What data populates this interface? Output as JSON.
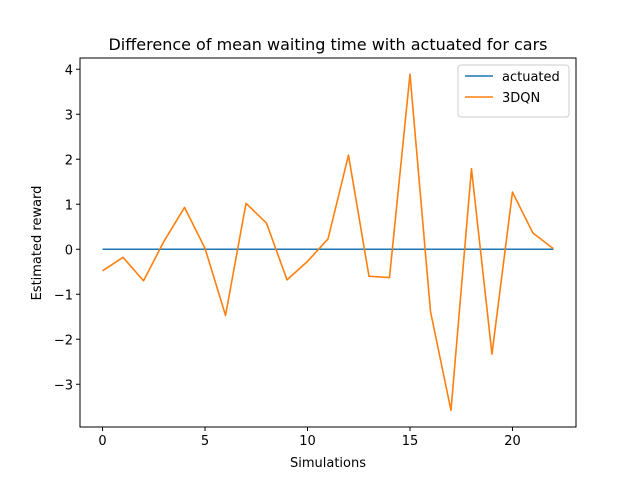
{
  "chart_data": {
    "type": "line",
    "title": "Difference of mean waiting time with actuated for cars",
    "xlabel": "Simulations",
    "ylabel": "Estimated reward",
    "x": [
      0,
      1,
      2,
      3,
      4,
      5,
      6,
      7,
      8,
      9,
      10,
      11,
      12,
      13,
      14,
      15,
      16,
      17,
      18,
      19,
      20,
      21,
      22
    ],
    "xlim": [
      -1.1,
      23.1
    ],
    "ylim": [
      -3.95,
      4.25
    ],
    "xticks": [
      0,
      5,
      10,
      15,
      20
    ],
    "yticks": [
      -3,
      -2,
      -1,
      0,
      1,
      2,
      3,
      4
    ],
    "legend_position": "top-right",
    "grid": false,
    "series": [
      {
        "name": "actuated",
        "color": "#1f77b4",
        "values": [
          0,
          0,
          0,
          0,
          0,
          0,
          0,
          0,
          0,
          0,
          0,
          0,
          0,
          0,
          0,
          0,
          0,
          0,
          0,
          0,
          0,
          0,
          0
        ]
      },
      {
        "name": "3DQN",
        "color": "#ff7f0e",
        "values": [
          -0.48,
          -0.18,
          -0.7,
          0.18,
          0.93,
          0.02,
          -1.47,
          1.02,
          0.58,
          -0.68,
          -0.27,
          0.23,
          2.09,
          -0.6,
          -0.63,
          3.89,
          -1.38,
          -3.58,
          1.79,
          -2.33,
          1.27,
          0.36,
          0.01
        ]
      }
    ]
  }
}
